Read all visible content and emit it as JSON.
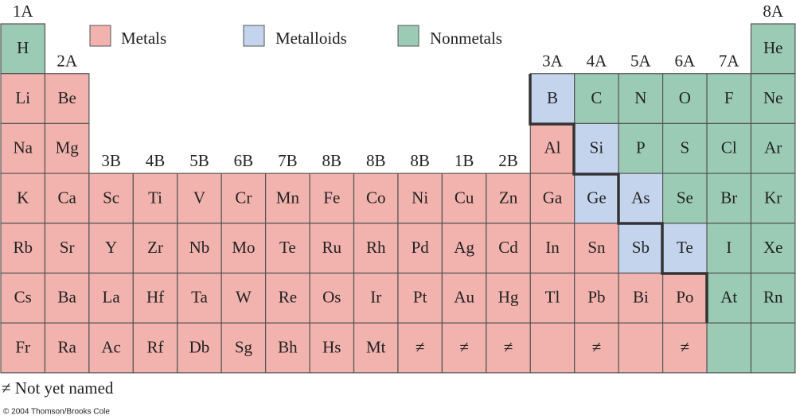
{
  "legend": [
    {
      "label": "Metals",
      "color": "#f2b3ae"
    },
    {
      "label": "Metalloids",
      "color": "#c4d4ec"
    },
    {
      "label": "Nonmetals",
      "color": "#9bcbb5"
    }
  ],
  "groups": [
    "1A",
    "2A",
    "3B",
    "4B",
    "5B",
    "6B",
    "7B",
    "8B",
    "8B",
    "8B",
    "1B",
    "2B",
    "3A",
    "4A",
    "5A",
    "6A",
    "7A",
    "8A"
  ],
  "rows": [
    [
      {
        "symbol": "H",
        "color": "#9bcbb5"
      },
      null,
      null,
      null,
      null,
      null,
      null,
      null,
      null,
      null,
      null,
      null,
      null,
      null,
      null,
      null,
      null,
      {
        "symbol": "He",
        "color": "#9bcbb5"
      }
    ],
    [
      {
        "symbol": "Li",
        "color": "#f2b3ae"
      },
      {
        "symbol": "Be",
        "color": "#f2b3ae"
      },
      null,
      null,
      null,
      null,
      null,
      null,
      null,
      null,
      null,
      null,
      {
        "symbol": "B",
        "color": "#c4d4ec"
      },
      {
        "symbol": "C",
        "color": "#9bcbb5"
      },
      {
        "symbol": "N",
        "color": "#9bcbb5"
      },
      {
        "symbol": "O",
        "color": "#9bcbb5"
      },
      {
        "symbol": "F",
        "color": "#9bcbb5"
      },
      {
        "symbol": "Ne",
        "color": "#9bcbb5"
      }
    ],
    [
      {
        "symbol": "Na",
        "color": "#f2b3ae"
      },
      {
        "symbol": "Mg",
        "color": "#f2b3ae"
      },
      null,
      null,
      null,
      null,
      null,
      null,
      null,
      null,
      null,
      null,
      {
        "symbol": "Al",
        "color": "#f2b3ae"
      },
      {
        "symbol": "Si",
        "color": "#c4d4ec"
      },
      {
        "symbol": "P",
        "color": "#9bcbb5"
      },
      {
        "symbol": "S",
        "color": "#9bcbb5"
      },
      {
        "symbol": "Cl",
        "color": "#9bcbb5"
      },
      {
        "symbol": "Ar",
        "color": "#9bcbb5"
      }
    ],
    [
      {
        "symbol": "K",
        "color": "#f2b3ae"
      },
      {
        "symbol": "Ca",
        "color": "#f2b3ae"
      },
      {
        "symbol": "Sc",
        "color": "#f2b3ae"
      },
      {
        "symbol": "Ti",
        "color": "#f2b3ae"
      },
      {
        "symbol": "V",
        "color": "#f2b3ae"
      },
      {
        "symbol": "Cr",
        "color": "#f2b3ae"
      },
      {
        "symbol": "Mn",
        "color": "#f2b3ae"
      },
      {
        "symbol": "Fe",
        "color": "#f2b3ae"
      },
      {
        "symbol": "Co",
        "color": "#f2b3ae"
      },
      {
        "symbol": "Ni",
        "color": "#f2b3ae"
      },
      {
        "symbol": "Cu",
        "color": "#f2b3ae"
      },
      {
        "symbol": "Zn",
        "color": "#f2b3ae"
      },
      {
        "symbol": "Ga",
        "color": "#f2b3ae"
      },
      {
        "symbol": "Ge",
        "color": "#c4d4ec"
      },
      {
        "symbol": "As",
        "color": "#c4d4ec"
      },
      {
        "symbol": "Se",
        "color": "#9bcbb5"
      },
      {
        "symbol": "Br",
        "color": "#9bcbb5"
      },
      {
        "symbol": "Kr",
        "color": "#9bcbb5"
      }
    ],
    [
      {
        "symbol": "Rb",
        "color": "#f2b3ae"
      },
      {
        "symbol": "Sr",
        "color": "#f2b3ae"
      },
      {
        "symbol": "Y",
        "color": "#f2b3ae"
      },
      {
        "symbol": "Zr",
        "color": "#f2b3ae"
      },
      {
        "symbol": "Nb",
        "color": "#f2b3ae"
      },
      {
        "symbol": "Mo",
        "color": "#f2b3ae"
      },
      {
        "symbol": "Te",
        "color": "#f2b3ae"
      },
      {
        "symbol": "Ru",
        "color": "#f2b3ae"
      },
      {
        "symbol": "Rh",
        "color": "#f2b3ae"
      },
      {
        "symbol": "Pd",
        "color": "#f2b3ae"
      },
      {
        "symbol": "Ag",
        "color": "#f2b3ae"
      },
      {
        "symbol": "Cd",
        "color": "#f2b3ae"
      },
      {
        "symbol": "In",
        "color": "#f2b3ae"
      },
      {
        "symbol": "Sn",
        "color": "#f2b3ae"
      },
      {
        "symbol": "Sb",
        "color": "#c4d4ec"
      },
      {
        "symbol": "Te",
        "color": "#c4d4ec"
      },
      {
        "symbol": "I",
        "color": "#9bcbb5"
      },
      {
        "symbol": "Xe",
        "color": "#9bcbb5"
      }
    ],
    [
      {
        "symbol": "Cs",
        "color": "#f2b3ae"
      },
      {
        "symbol": "Ba",
        "color": "#f2b3ae"
      },
      {
        "symbol": "La",
        "color": "#f2b3ae"
      },
      {
        "symbol": "Hf",
        "color": "#f2b3ae"
      },
      {
        "symbol": "Ta",
        "color": "#f2b3ae"
      },
      {
        "symbol": "W",
        "color": "#f2b3ae"
      },
      {
        "symbol": "Re",
        "color": "#f2b3ae"
      },
      {
        "symbol": "Os",
        "color": "#f2b3ae"
      },
      {
        "symbol": "Ir",
        "color": "#f2b3ae"
      },
      {
        "symbol": "Pt",
        "color": "#f2b3ae"
      },
      {
        "symbol": "Au",
        "color": "#f2b3ae"
      },
      {
        "symbol": "Hg",
        "color": "#f2b3ae"
      },
      {
        "symbol": "Tl",
        "color": "#f2b3ae"
      },
      {
        "symbol": "Pb",
        "color": "#f2b3ae"
      },
      {
        "symbol": "Bi",
        "color": "#f2b3ae"
      },
      {
        "symbol": "Po",
        "color": "#f2b3ae"
      },
      {
        "symbol": "At",
        "color": "#9bcbb5"
      },
      {
        "symbol": "Rn",
        "color": "#9bcbb5"
      }
    ],
    [
      {
        "symbol": "Fr",
        "color": "#f2b3ae"
      },
      {
        "symbol": "Ra",
        "color": "#f2b3ae"
      },
      {
        "symbol": "Ac",
        "color": "#f2b3ae"
      },
      {
        "symbol": "Rf",
        "color": "#f2b3ae"
      },
      {
        "symbol": "Db",
        "color": "#f2b3ae"
      },
      {
        "symbol": "Sg",
        "color": "#f2b3ae"
      },
      {
        "symbol": "Bh",
        "color": "#f2b3ae"
      },
      {
        "symbol": "Hs",
        "color": "#f2b3ae"
      },
      {
        "symbol": "Mt",
        "color": "#f2b3ae"
      },
      {
        "symbol": "≠",
        "color": "#f2b3ae"
      },
      {
        "symbol": "≠",
        "color": "#f2b3ae"
      },
      {
        "symbol": "≠",
        "color": "#f2b3ae"
      },
      {
        "color": "#f2b3ae"
      },
      {
        "symbol": "≠",
        "color": "#f2b3ae"
      },
      {
        "color": "#f2b3ae"
      },
      {
        "symbol": "≠",
        "color": "#f2b3ae"
      },
      {
        "color": "#9bcbb5"
      },
      {
        "color": "#9bcbb5"
      }
    ]
  ],
  "footnote": "≠ Not yet named",
  "copyright": "© 2004 Thomson/Brooks Cole"
}
